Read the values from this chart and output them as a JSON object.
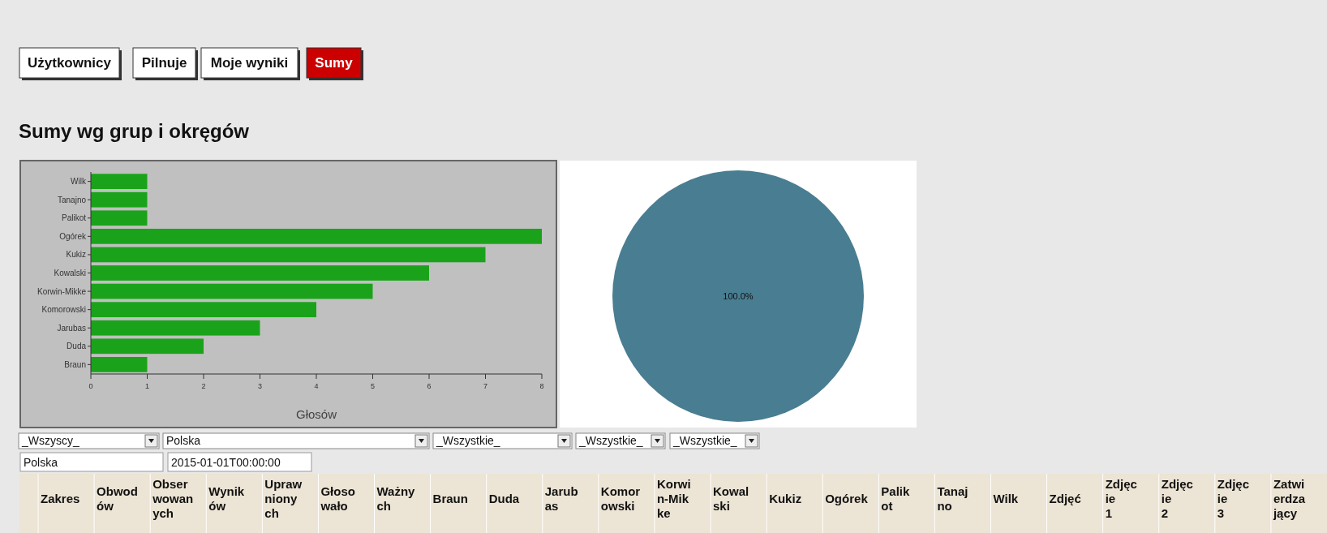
{
  "chart_data": [
    {
      "type": "other",
      "title": "Sumy wg grup i okręgów",
      "annotations": [
        "Użytkownicy",
        "Pilnuje",
        "Moje wyniki",
        "Sumy"
      ]
    },
    {
      "type": "bar",
      "orientation": "horizontal",
      "categories": [
        "Wilk",
        "Tanajno",
        "Palikot",
        "Ogórek",
        "Kukiz",
        "Kowalski",
        "Korwin-Mikke",
        "Komorowski",
        "Jarubas",
        "Duda",
        "Braun"
      ],
      "values": [
        1,
        1,
        1,
        8,
        7,
        6,
        5,
        4,
        3,
        2,
        1
      ],
      "color": "#1aa31a",
      "xlim": [
        0,
        8
      ],
      "xticks": [
        0,
        1,
        2,
        3,
        4,
        5,
        6,
        7,
        8
      ],
      "xlabel": "Głosów"
    },
    {
      "type": "pie",
      "categories": [
        null
      ],
      "values": [
        100
      ],
      "colors": [
        "#497d91"
      ],
      "value_labels": [
        "100.0%"
      ]
    },
    {
      "type": "other",
      "annotations": [
        "_Wszyscy_",
        "Polska",
        "_Wszystkie_",
        "_Wszystkie_",
        "_Wszystkie_",
        "Polska",
        "2015-01-01T00:00:00",
        "Zakres",
        "Obwodów",
        "Obserwowanych",
        "Wyników",
        "Uprawnionych",
        "Głosowało",
        "Ważnych",
        "Braun",
        "Duda",
        "Jarubas",
        "Komorowski",
        "Korwin-Mikke",
        "Kowalski",
        "Kukiz",
        "Ogórek",
        "Palikot",
        "Tanajno",
        "Wilk",
        "Zdjęć",
        "Zdjęcie 1",
        "Zdjęcie 2",
        "Zdjęcie 3",
        "Zatwierdzający"
      ]
    }
  ]
}
